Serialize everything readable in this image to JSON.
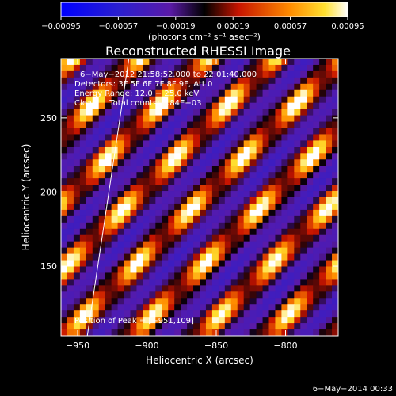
{
  "chart_data": {
    "type": "heatmap",
    "title": "Reconstructed RHESSI Image",
    "xlabel": "Heliocentric X (arcsec)",
    "ylabel": "Heliocentric Y (arcsec)",
    "xlim": [
      -962,
      -762
    ],
    "ylim": [
      103,
      290
    ],
    "x_ticks": [
      -950,
      -900,
      -850,
      -800
    ],
    "y_ticks": [
      150,
      200,
      250
    ],
    "x_tick_labels": [
      "−950",
      "−900",
      "−850",
      "−800"
    ],
    "y_tick_labels": [
      "150",
      "200",
      "250"
    ],
    "colorbar": {
      "range": [
        -0.00095,
        0.00095
      ],
      "ticks": [
        -0.00095,
        -0.00057,
        -0.00019,
        0.00019,
        0.00057,
        0.00095
      ],
      "tick_labels": [
        "−0.00095",
        "−0.00057",
        "−0.00019",
        "0.00019",
        "0.00057",
        "0.00095"
      ],
      "unit_label": "(photons cm⁻² s⁻¹ asec⁻²)"
    },
    "annotations": {
      "time": "6−May−2012 21:58:52.000 to 22:01:40.000",
      "detectors": "Detectors: 3F 5F 6F 7F 8F 9F, Att 0",
      "energy": "Energy Range: 12.0 − 25.0 keV",
      "clean": "Clean     Total counts: 5.84E+03",
      "peak": "Position of Peak = [−951,109]"
    },
    "footer_date": "6−May−2014 00:33",
    "limb_line": [
      [
        -943,
        103
      ],
      [
        -913,
        290
      ]
    ],
    "grid": false
  }
}
